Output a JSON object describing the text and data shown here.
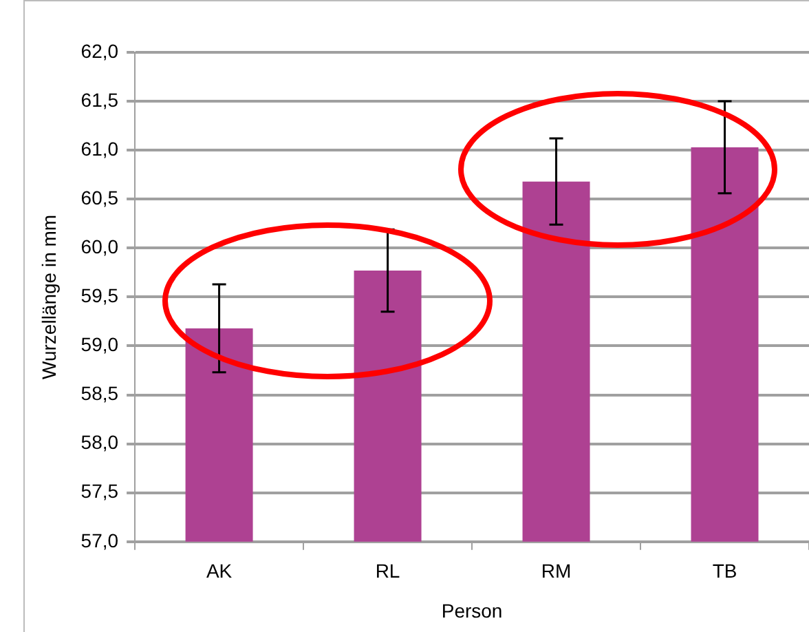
{
  "chart_data": {
    "type": "bar",
    "xlabel": "Person",
    "ylabel": "Wurzellänge in mm",
    "categories": [
      "AK",
      "RL",
      "RM",
      "TB"
    ],
    "series": [
      {
        "color": "#ae4192",
        "values": [
          59.18,
          59.77,
          60.68,
          61.03
        ],
        "errors": [
          0.45,
          0.42,
          0.44,
          0.47
        ]
      }
    ],
    "ylim": [
      57,
      62
    ],
    "yticks": [
      {
        "value": 57,
        "label": "57,0"
      },
      {
        "value": 57.5,
        "label": "57,5"
      },
      {
        "value": 58,
        "label": "58,0"
      },
      {
        "value": 58.5,
        "label": "58,5"
      },
      {
        "value": 59,
        "label": "59,0"
      },
      {
        "value": 59.5,
        "label": "59,5"
      },
      {
        "value": 60,
        "label": "60,0"
      },
      {
        "value": 60.5,
        "label": "60,5"
      },
      {
        "value": 61,
        "label": "61,0"
      },
      {
        "value": 61.5,
        "label": "61,5"
      },
      {
        "value": 62,
        "label": "62,0"
      }
    ],
    "grid": "y",
    "legend": false
  }
}
